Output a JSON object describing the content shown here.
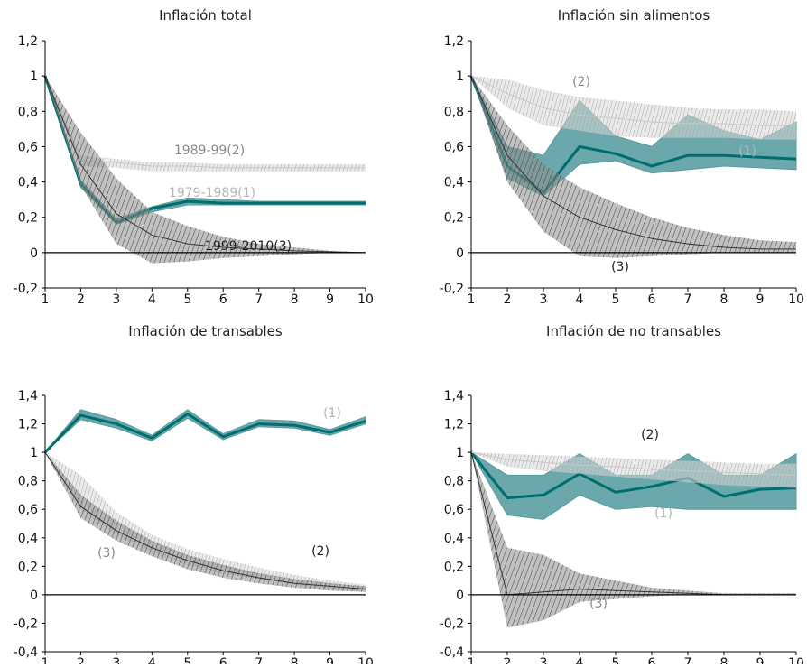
{
  "colors": {
    "teal": "#006d70",
    "tealLight": "#6aa8ab",
    "gray": "#bdbdbd",
    "grayText": "#8a8a8a",
    "lightText": "#b5b5b5",
    "dark": "#1f1f1f"
  },
  "chart_data": [
    {
      "type": "line",
      "title": "Inflación total",
      "x": [
        1,
        2,
        3,
        4,
        5,
        6,
        7,
        8,
        9,
        10
      ],
      "ylim": [
        -0.2,
        1.2
      ],
      "yticks": [
        "-0,2",
        "0",
        "0,2",
        "0,4",
        "0,6",
        "0,8",
        "1",
        "1,2"
      ],
      "xticks": [
        "1",
        "2",
        "3",
        "4",
        "5",
        "6",
        "7",
        "8",
        "9",
        "10"
      ],
      "series": [
        {
          "name": "1979-1989(1)",
          "values": [
            1,
            0.39,
            0.17,
            0.25,
            0.29,
            0.28,
            0.28,
            0.28,
            0.28,
            0.28
          ],
          "lower": [
            1,
            0.37,
            0.16,
            0.23,
            0.27,
            0.27,
            0.27,
            0.27,
            0.27,
            0.27
          ],
          "upper": [
            1,
            0.41,
            0.19,
            0.26,
            0.31,
            0.3,
            0.29,
            0.29,
            0.29,
            0.29
          ]
        },
        {
          "name": "1989-99(2)",
          "values": [
            1,
            0.52,
            0.51,
            0.49,
            0.49,
            0.48,
            0.48,
            0.48,
            0.48,
            0.48
          ],
          "lower": [
            1,
            0.49,
            0.48,
            0.46,
            0.46,
            0.46,
            0.46,
            0.46,
            0.46,
            0.46
          ],
          "upper": [
            1,
            0.55,
            0.53,
            0.51,
            0.51,
            0.5,
            0.5,
            0.5,
            0.5,
            0.5
          ]
        },
        {
          "name": "1999-2010(3)",
          "values": [
            1,
            0.5,
            0.22,
            0.1,
            0.05,
            0.03,
            0.02,
            0.01,
            0.005,
            0
          ],
          "lower": [
            1,
            0.38,
            0.05,
            -0.06,
            -0.05,
            -0.03,
            -0.02,
            -0.01,
            0,
            0
          ],
          "upper": [
            1,
            0.68,
            0.42,
            0.23,
            0.15,
            0.09,
            0.05,
            0.03,
            0.01,
            0
          ]
        }
      ]
    },
    {
      "type": "line",
      "title": "Inflación sin alimentos",
      "x": [
        1,
        2,
        3,
        4,
        5,
        6,
        7,
        8,
        9,
        10
      ],
      "ylim": [
        -0.2,
        1.2
      ],
      "yticks": [
        "-0,2",
        "0",
        "0,2",
        "0,4",
        "0,6",
        "0,8",
        "1",
        "1,2"
      ],
      "xticks": [
        "1",
        "2",
        "3",
        "4",
        "5",
        "6",
        "7",
        "8",
        "9",
        "10"
      ],
      "series": [
        {
          "name": "(1)",
          "values": [
            1,
            0.49,
            0.34,
            0.6,
            0.56,
            0.49,
            0.55,
            0.55,
            0.54,
            0.53
          ],
          "lower": [
            1,
            0.42,
            0.32,
            0.5,
            0.52,
            0.45,
            0.47,
            0.49,
            0.48,
            0.47
          ],
          "upper": [
            1,
            0.6,
            0.55,
            0.86,
            0.66,
            0.6,
            0.78,
            0.69,
            0.64,
            0.74
          ]
        },
        {
          "name": "(2)",
          "values": [
            1,
            0.9,
            0.82,
            0.78,
            0.76,
            0.74,
            0.73,
            0.73,
            0.72,
            0.72
          ],
          "lower": [
            1,
            0.82,
            0.72,
            0.69,
            0.66,
            0.65,
            0.65,
            0.65,
            0.64,
            0.64
          ],
          "upper": [
            1,
            0.98,
            0.92,
            0.88,
            0.86,
            0.84,
            0.82,
            0.81,
            0.81,
            0.8
          ]
        },
        {
          "name": "(3)",
          "values": [
            1,
            0.55,
            0.32,
            0.2,
            0.13,
            0.08,
            0.05,
            0.03,
            0.02,
            0.02
          ],
          "lower": [
            1,
            0.4,
            0.12,
            -0.02,
            -0.03,
            -0.02,
            -0.01,
            0,
            0,
            0
          ],
          "upper": [
            1,
            0.72,
            0.5,
            0.37,
            0.28,
            0.2,
            0.14,
            0.1,
            0.07,
            0.06
          ]
        }
      ]
    },
    {
      "type": "line",
      "title": "Inflación de transables",
      "x": [
        1,
        2,
        3,
        4,
        5,
        6,
        7,
        8,
        9,
        10
      ],
      "ylim": [
        -0.4,
        1.4
      ],
      "yticks": [
        "-0,4",
        "-0,2",
        "0",
        "0,2",
        "0,4",
        "0,6",
        "0,8",
        "1",
        "1,2",
        "1,4"
      ],
      "xticks": [
        "1",
        "2",
        "3",
        "4",
        "5",
        "6",
        "7",
        "8",
        "9",
        "10"
      ],
      "series": [
        {
          "name": "(1)",
          "values": [
            1,
            1.26,
            1.2,
            1.1,
            1.27,
            1.11,
            1.2,
            1.19,
            1.14,
            1.22
          ],
          "lower": [
            1,
            1.23,
            1.17,
            1.08,
            1.24,
            1.09,
            1.18,
            1.17,
            1.12,
            1.2
          ],
          "upper": [
            1,
            1.3,
            1.23,
            1.12,
            1.3,
            1.13,
            1.23,
            1.22,
            1.16,
            1.25
          ]
        },
        {
          "name": "(2)",
          "values": [
            1,
            0.7,
            0.5,
            0.37,
            0.27,
            0.2,
            0.15,
            0.11,
            0.08,
            0.05
          ],
          "lower": [
            1,
            0.6,
            0.42,
            0.3,
            0.21,
            0.15,
            0.11,
            0.07,
            0.04,
            0.02
          ],
          "upper": [
            1,
            0.84,
            0.58,
            0.42,
            0.32,
            0.25,
            0.19,
            0.14,
            0.1,
            0.07
          ]
        },
        {
          "name": "(3)",
          "values": [
            1,
            0.62,
            0.45,
            0.33,
            0.24,
            0.17,
            0.12,
            0.08,
            0.06,
            0.04
          ],
          "lower": [
            1,
            0.54,
            0.38,
            0.27,
            0.18,
            0.12,
            0.08,
            0.05,
            0.03,
            0.02
          ],
          "upper": [
            1,
            0.7,
            0.52,
            0.38,
            0.28,
            0.21,
            0.15,
            0.11,
            0.08,
            0.06
          ]
        }
      ]
    },
    {
      "type": "line",
      "title": "Inflación de no transables",
      "x": [
        1,
        2,
        3,
        4,
        5,
        6,
        7,
        8,
        9,
        10
      ],
      "ylim": [
        -0.4,
        1.4
      ],
      "yticks": [
        "-0,4",
        "-0,2",
        "0",
        "0,2",
        "0,4",
        "0,6",
        "0,8",
        "1",
        "1,2",
        "1,4"
      ],
      "xticks": [
        "1",
        "2",
        "3",
        "4",
        "5",
        "6",
        "7",
        "8",
        "9",
        "10"
      ],
      "series": [
        {
          "name": "(1)",
          "values": [
            1,
            0.68,
            0.7,
            0.85,
            0.72,
            0.76,
            0.82,
            0.69,
            0.74,
            0.75
          ],
          "lower": [
            1,
            0.56,
            0.53,
            0.7,
            0.6,
            0.62,
            0.6,
            0.6,
            0.6,
            0.6
          ],
          "upper": [
            1,
            0.84,
            0.84,
            0.99,
            0.84,
            0.84,
            0.99,
            0.84,
            0.84,
            0.99
          ]
        },
        {
          "name": "(2)",
          "values": [
            1,
            0.95,
            0.93,
            0.91,
            0.9,
            0.88,
            0.87,
            0.86,
            0.85,
            0.84
          ],
          "lower": [
            1,
            0.9,
            0.87,
            0.85,
            0.83,
            0.81,
            0.79,
            0.77,
            0.76,
            0.75
          ],
          "upper": [
            1,
            0.99,
            0.98,
            0.97,
            0.96,
            0.95,
            0.94,
            0.93,
            0.92,
            0.92
          ]
        },
        {
          "name": "(3)",
          "values": [
            1,
            0.0,
            0.02,
            0.04,
            0.03,
            0.02,
            0.01,
            0.0,
            0.0,
            0.0
          ],
          "lower": [
            1,
            -0.23,
            -0.18,
            -0.05,
            -0.03,
            -0.01,
            0,
            0,
            0,
            0
          ],
          "upper": [
            1,
            0.33,
            0.28,
            0.15,
            0.1,
            0.05,
            0.03,
            0.01,
            0.01,
            0.01
          ]
        }
      ]
    }
  ]
}
